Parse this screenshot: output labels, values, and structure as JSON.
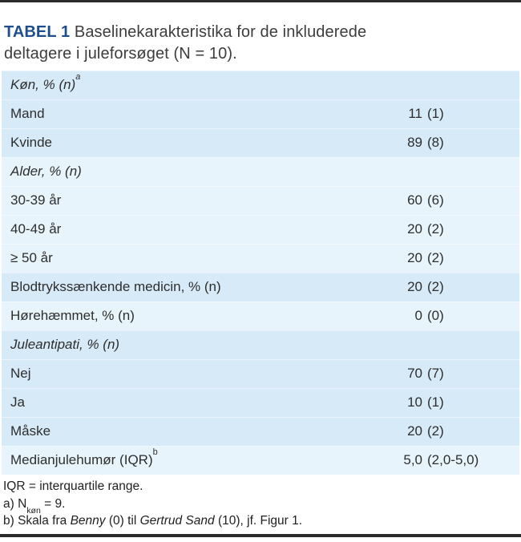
{
  "colors": {
    "navy": "#1e4f8c",
    "bar": "#2b2b2b",
    "rowdark": "#d7eaf8",
    "rowlight": "#e7f4fc",
    "text": "#2e2e2e",
    "titletext": "#3d3d3d",
    "fntext": "#222222"
  },
  "title": {
    "tag": "TABEL 1",
    "line1": "Baselinekarakteristika for de inkluderede",
    "line2": "deltagere i juleforsøget (N = 10)."
  },
  "table": {
    "rows": [
      {
        "label": "Køn, % (n)",
        "sup": "a",
        "section": true,
        "value": null,
        "shade": "dark"
      },
      {
        "label": "Mand",
        "section": false,
        "value": "11 (1)",
        "shade": "dark"
      },
      {
        "label": "Kvinde",
        "section": false,
        "value": "89 (8)",
        "shade": "dark"
      },
      {
        "label": "Alder, % (n)",
        "section": true,
        "value": null,
        "shade": "light"
      },
      {
        "label": "30-39 år",
        "section": false,
        "value": "60 (6)",
        "shade": "light"
      },
      {
        "label": "40-49 år",
        "section": false,
        "value": "20 (2)",
        "shade": "light"
      },
      {
        "label": "≥ 50 år",
        "section": false,
        "value": "20 (2)",
        "shade": "light"
      },
      {
        "label": "Blodtrykssænkende medicin, % (n)",
        "section": false,
        "value": "20 (2)",
        "shade": "dark"
      },
      {
        "label": "Hørehæmmet, % (n)",
        "section": false,
        "value": "0 (0)",
        "shade": "light"
      },
      {
        "label": "Juleantipati, % (n)",
        "section": true,
        "value": null,
        "shade": "dark"
      },
      {
        "label": "Nej",
        "section": false,
        "value": "70 (7)",
        "shade": "dark"
      },
      {
        "label": "Ja",
        "section": false,
        "value": "10 (1)",
        "shade": "dark"
      },
      {
        "label": "Måske",
        "section": false,
        "value": "20 (2)",
        "shade": "dark"
      },
      {
        "label": "Medianjulehumør (IQR)",
        "sup": "b",
        "section": false,
        "value": "5,0 (2,0-5,0)",
        "shade": "light"
      }
    ]
  },
  "footnotes": [
    {
      "segments": [
        {
          "text": "IQR = interquartile range."
        }
      ]
    },
    {
      "segments": [
        {
          "text": "a) N"
        },
        {
          "text": "køn",
          "sub": true
        },
        {
          "text": " = 9."
        }
      ]
    },
    {
      "segments": [
        {
          "text": "b) Skala fra "
        },
        {
          "text": "Benny",
          "italic": true
        },
        {
          "text": " (0) til "
        },
        {
          "text": "Gertrud Sand",
          "italic": true
        },
        {
          "text": " (10), jf. Figur 1."
        }
      ]
    }
  ]
}
